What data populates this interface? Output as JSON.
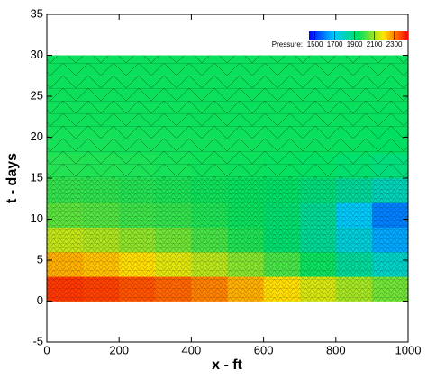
{
  "chart_data": {
    "type": "contour",
    "x_label": "x - ft",
    "y_label": "t - days",
    "xlim": [
      0,
      1000
    ],
    "ylim": [
      -5,
      35
    ],
    "xticks": [
      0,
      200,
      400,
      600,
      800,
      1000
    ],
    "yticks": [
      -5,
      0,
      5,
      10,
      15,
      20,
      25,
      30,
      35
    ],
    "x_edges": [
      0,
      100,
      200,
      300,
      400,
      500,
      600,
      700,
      800,
      900,
      1000
    ],
    "y_edges": [
      0,
      3,
      6,
      9,
      12,
      15,
      18,
      21,
      24,
      27,
      30
    ],
    "z": [
      [
        2380,
        2370,
        2350,
        2330,
        2300,
        2250,
        2200,
        2150,
        2100,
        2050
      ],
      [
        2250,
        2230,
        2200,
        2160,
        2120,
        2070,
        2010,
        1950,
        1850,
        1780
      ],
      [
        2130,
        2110,
        2080,
        2050,
        2010,
        1970,
        1920,
        1860,
        1750,
        1650
      ],
      [
        2030,
        2020,
        2000,
        1990,
        1970,
        1950,
        1920,
        1860,
        1700,
        1600
      ],
      [
        1990,
        1985,
        1975,
        1965,
        1955,
        1945,
        1930,
        1900,
        1850,
        1800
      ],
      [
        1975,
        1970,
        1965,
        1960,
        1955,
        1950,
        1945,
        1935,
        1920,
        1900
      ],
      [
        1960,
        1960,
        1958,
        1956,
        1955,
        1953,
        1950,
        1948,
        1945,
        1940
      ],
      [
        1955,
        1955,
        1954,
        1953,
        1952,
        1951,
        1950,
        1949,
        1948,
        1946
      ],
      [
        1952,
        1952,
        1951,
        1951,
        1950,
        1950,
        1950,
        1949,
        1949,
        1948
      ],
      [
        1950,
        1950,
        1950,
        1950,
        1950,
        1950,
        1950,
        1950,
        1950,
        1950
      ]
    ],
    "colorbar_label": "Pressure:",
    "clim": [
      1440,
      2440
    ],
    "colorbar_ticks": [
      1500,
      1700,
      1900,
      2100,
      2300
    ]
  }
}
